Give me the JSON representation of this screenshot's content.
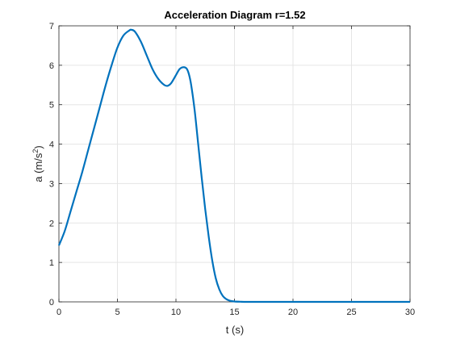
{
  "chart_data": {
    "type": "line",
    "title": "Acceleration Diagram r=1.52",
    "xlabel": "t (s)",
    "ylabel_main": "a (m/s",
    "ylabel_sup": "2",
    "ylabel_close": ")",
    "xlim": [
      0,
      30
    ],
    "ylim": [
      0,
      7
    ],
    "xticks": [
      0,
      5,
      10,
      15,
      20,
      25,
      30
    ],
    "yticks": [
      0,
      1,
      2,
      3,
      4,
      5,
      6,
      7
    ],
    "grid": true,
    "line_color": "#0072BD",
    "grid_color": "#e5e5e5",
    "axis_color": "#262626",
    "series": [
      {
        "x": [
          0,
          0.5,
          1,
          1.5,
          2,
          2.5,
          3,
          3.5,
          4,
          4.5,
          5,
          5.5,
          6,
          6.2,
          6.5,
          7,
          7.5,
          8,
          8.5,
          9,
          9.3,
          9.6,
          10,
          10.3,
          10.6,
          10.9,
          11.1,
          11.3,
          11.6,
          11.9,
          12.2,
          12.5,
          12.8,
          13.1,
          13.4,
          13.7,
          14,
          14.3,
          14.6,
          15,
          15.5,
          16,
          17,
          18,
          20,
          22,
          25,
          28,
          30
        ],
        "y": [
          1.43,
          1.8,
          2.3,
          2.8,
          3.3,
          3.85,
          4.4,
          4.95,
          5.5,
          6.0,
          6.45,
          6.75,
          6.88,
          6.9,
          6.85,
          6.6,
          6.25,
          5.9,
          5.65,
          5.5,
          5.48,
          5.55,
          5.75,
          5.9,
          5.95,
          5.92,
          5.78,
          5.5,
          4.85,
          4.0,
          3.15,
          2.35,
          1.65,
          1.05,
          0.6,
          0.32,
          0.15,
          0.07,
          0.03,
          0.01,
          0.004,
          0.0,
          0.0,
          0.0,
          0.0,
          0.0,
          0.0,
          0.0,
          0.0
        ]
      }
    ]
  }
}
